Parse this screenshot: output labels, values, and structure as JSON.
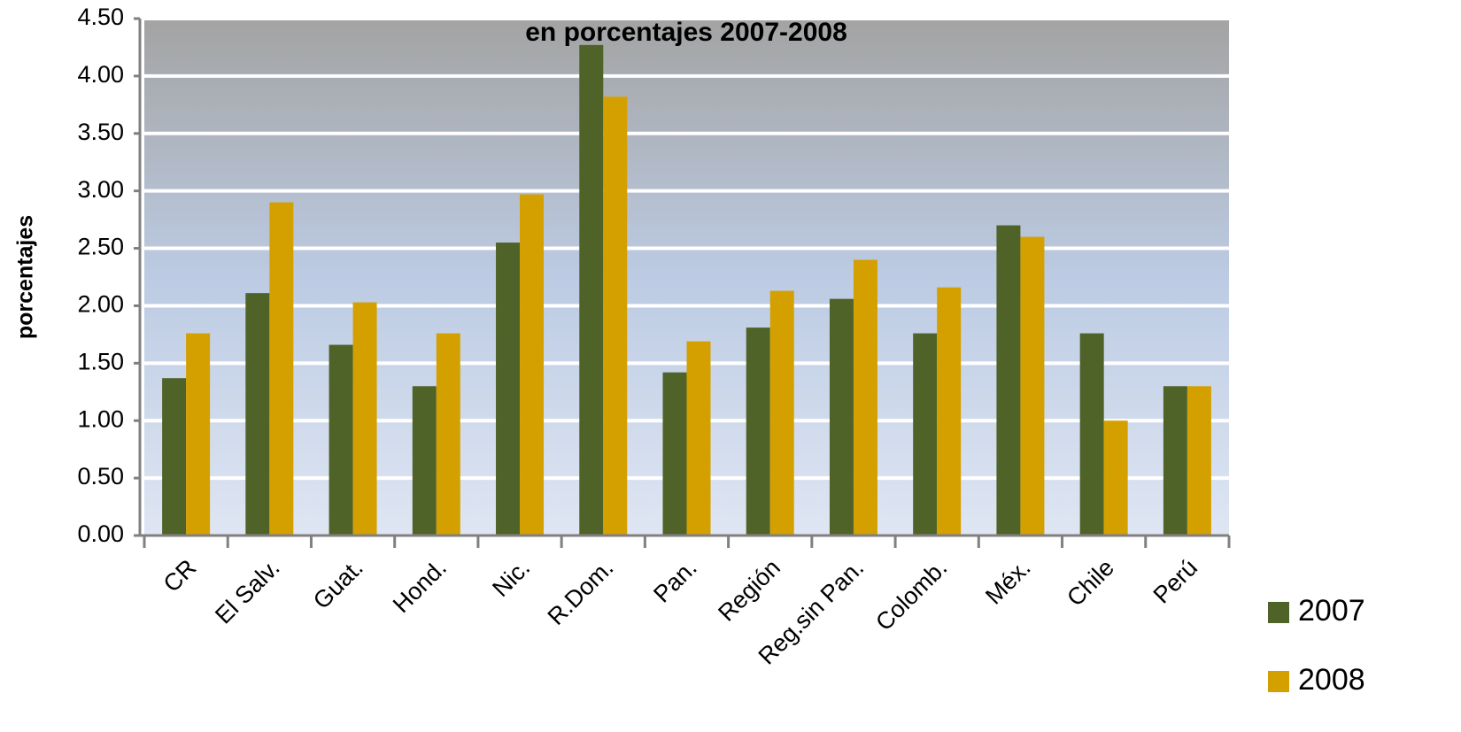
{
  "chart_data": {
    "type": "bar",
    "title": "en porcentajes 2007-2008",
    "y_label": "porcentajes",
    "categories": [
      "CR",
      "El Salv.",
      "Guat.",
      "Hond.",
      "Nic.",
      "R.Dom.",
      "Pan.",
      "Región",
      "Reg.sin Pan.",
      "Colomb.",
      "Méx.",
      "Chile",
      "Perú"
    ],
    "series": [
      {
        "name": "2007",
        "color": "#4f6228",
        "values": [
          1.37,
          2.11,
          1.66,
          1.3,
          2.55,
          4.27,
          1.42,
          1.81,
          2.06,
          1.76,
          2.7,
          1.76,
          1.3
        ]
      },
      {
        "name": "2008",
        "color": "#d4a000",
        "values": [
          1.76,
          2.9,
          2.03,
          1.76,
          2.97,
          3.82,
          1.69,
          2.13,
          2.4,
          2.16,
          2.6,
          1.0,
          1.3
        ]
      }
    ],
    "ylim": [
      0,
      4.5
    ],
    "yticks": [
      {
        "value": 0,
        "label": "0.00"
      },
      {
        "value": 0.5,
        "label": "0.50"
      },
      {
        "value": 1,
        "label": "1.00"
      },
      {
        "value": 1.5,
        "label": "1.50"
      },
      {
        "value": 2,
        "label": "2.00"
      },
      {
        "value": 2.5,
        "label": "2.50"
      },
      {
        "value": 3,
        "label": "3.00"
      },
      {
        "value": 3.5,
        "label": "3.50"
      },
      {
        "value": 4,
        "label": "4.00"
      },
      {
        "value": 4.5,
        "label": "4.50"
      }
    ],
    "grid": true,
    "legend": "bottom-right"
  }
}
